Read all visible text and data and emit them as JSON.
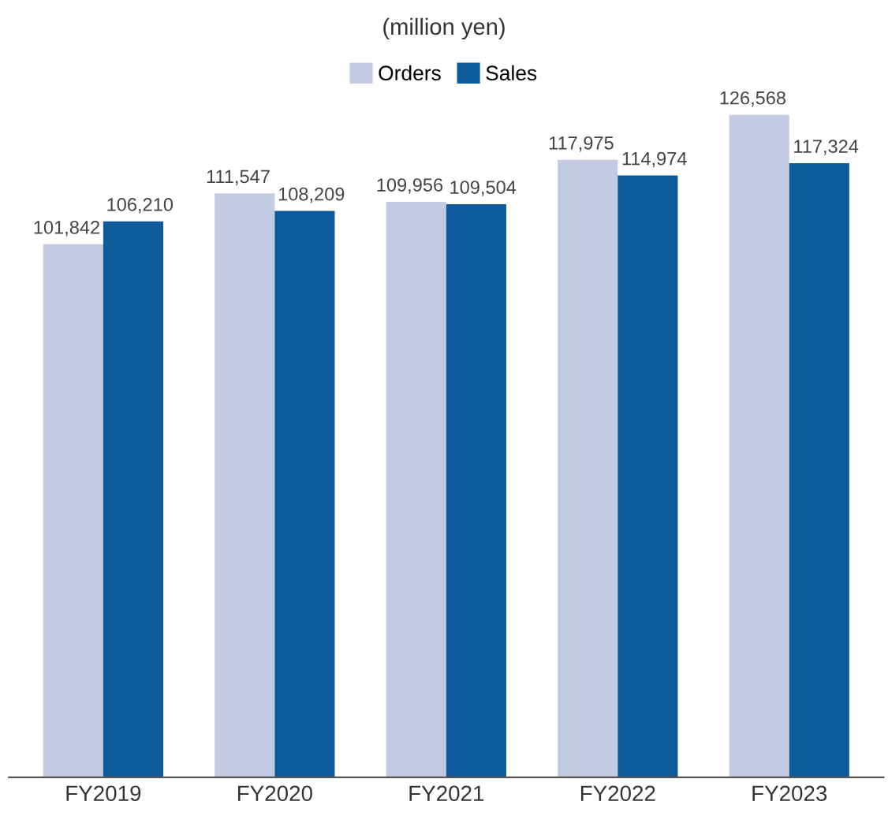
{
  "chart_data": {
    "type": "bar",
    "title": "(million yen)",
    "categories": [
      "FY2019",
      "FY2020",
      "FY2021",
      "FY2022",
      "FY2023"
    ],
    "series": [
      {
        "name": "Orders",
        "color": "#c3cbe3",
        "values": [
          101842,
          111547,
          109956,
          117975,
          126568
        ],
        "value_labels": [
          "101,842",
          "111,547",
          "109,956",
          "117,975",
          "126,568"
        ]
      },
      {
        "name": "Sales",
        "color": "#0e5b9c",
        "values": [
          106210,
          108209,
          109504,
          114974,
          117324
        ],
        "value_labels": [
          "106,210",
          "108,209",
          "109,504",
          "114,974",
          "117,324"
        ]
      }
    ],
    "legend": "top",
    "grid": false,
    "tick_labels": "x"
  }
}
